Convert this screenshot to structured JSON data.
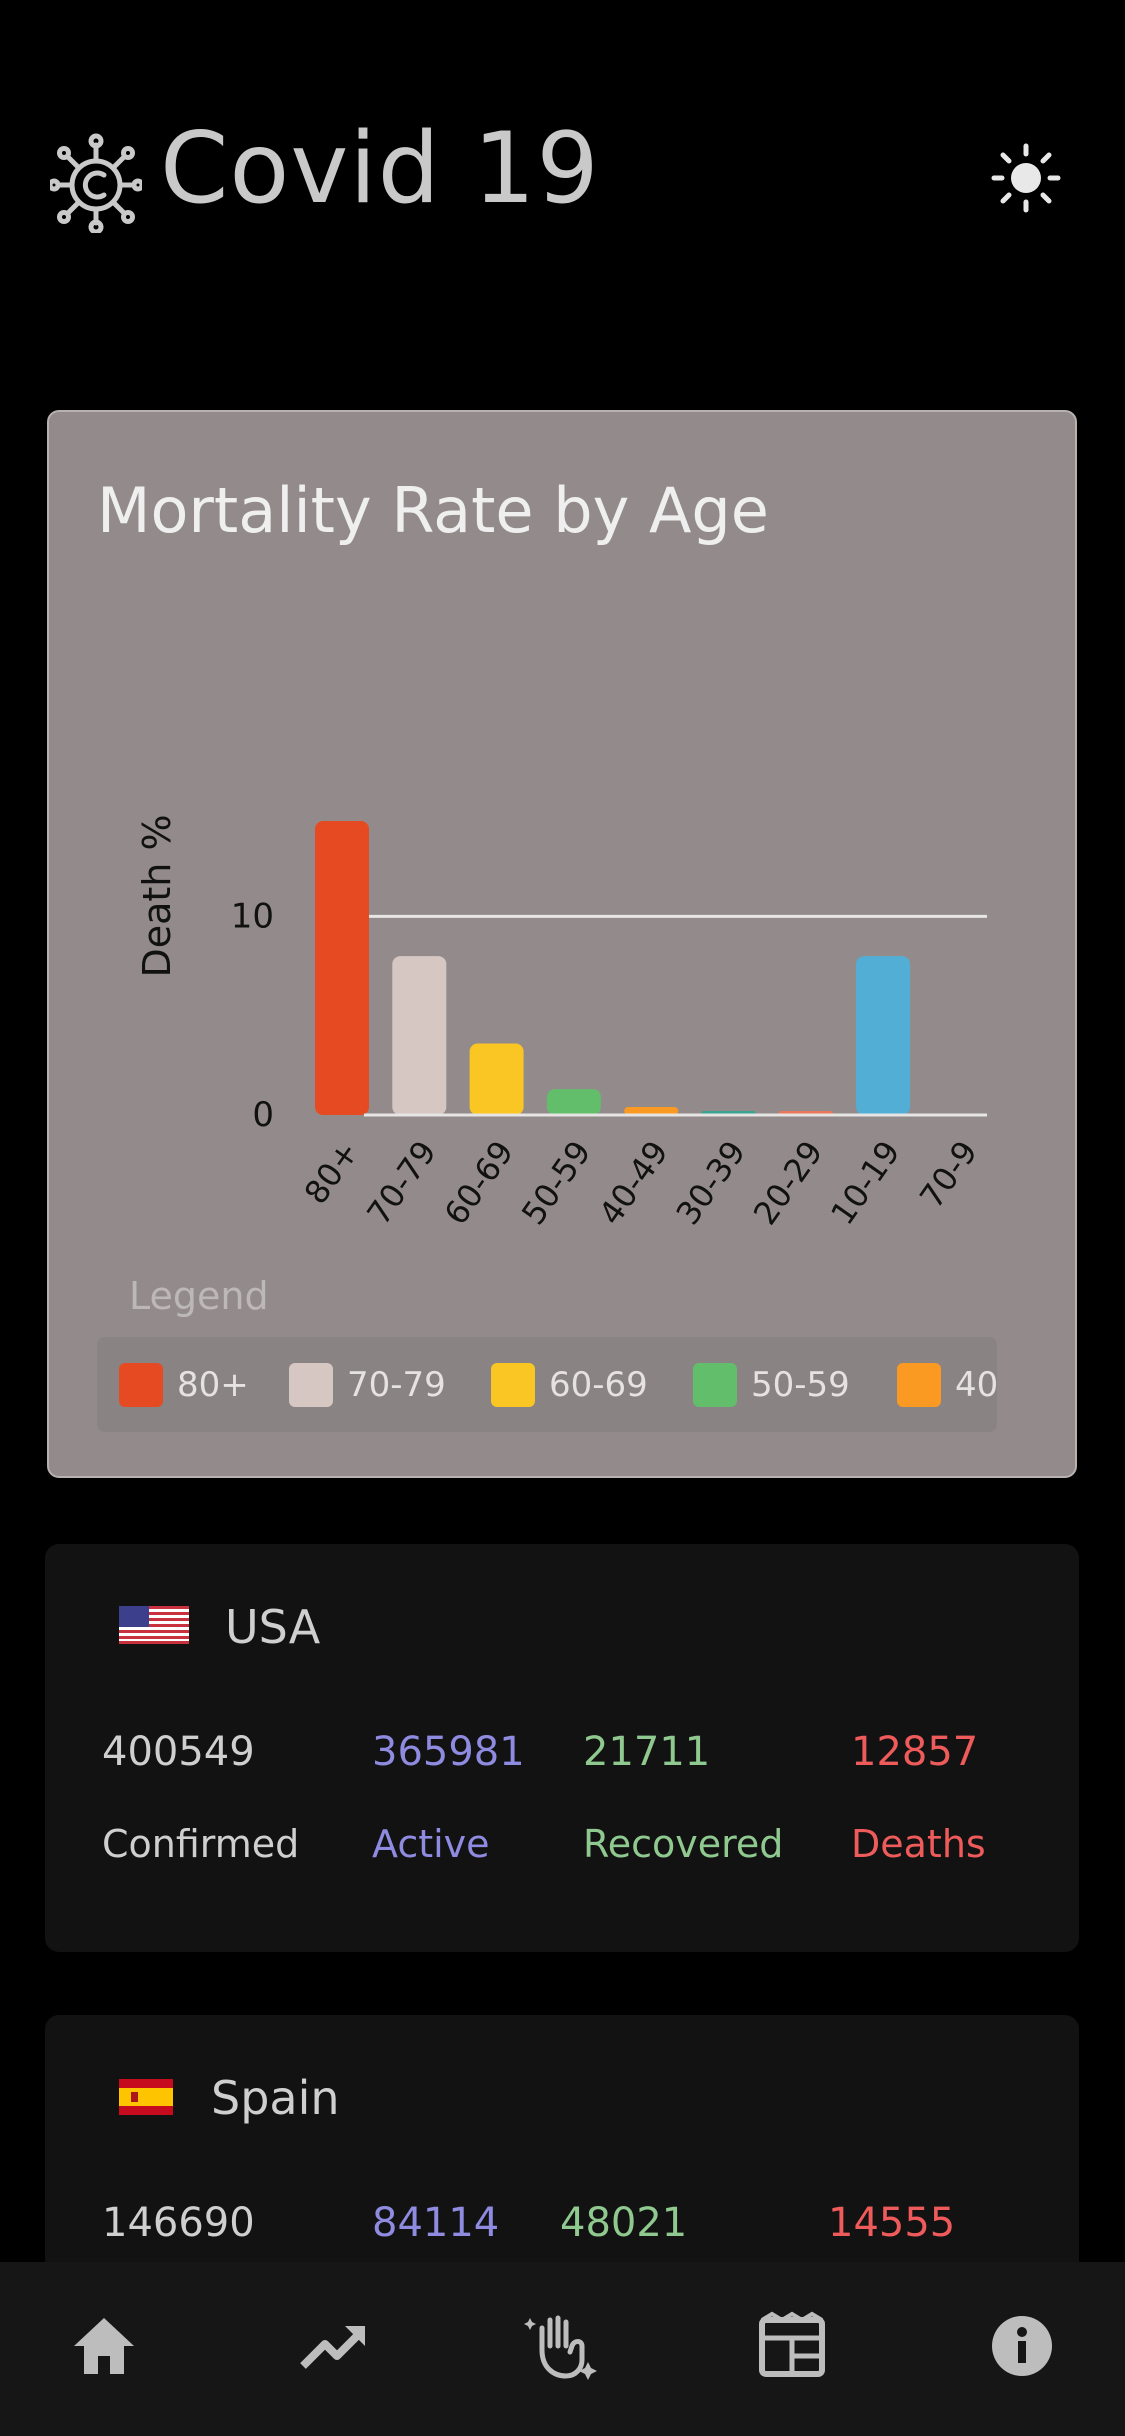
{
  "app": {
    "title": "Covid 19",
    "logo_icon": "virus-icon",
    "theme_icon": "sun-icon"
  },
  "chart_card": {
    "title": "Mortality Rate by Age",
    "legend_title": "Legend",
    "legend": [
      {
        "label": "80+",
        "color": "#e64a23"
      },
      {
        "label": "70-79",
        "color": "#d6c7c2"
      },
      {
        "label": "60-69",
        "color": "#fac623"
      },
      {
        "label": "50-59",
        "color": "#62be6b"
      },
      {
        "label": "40",
        "color": "#fb9a22"
      }
    ]
  },
  "chart_data": {
    "type": "bar",
    "categories": [
      "80+",
      "70-79",
      "60-69",
      "50-59",
      "40-49",
      "30-39",
      "20-29",
      "10-19",
      "70-9"
    ],
    "values": [
      14.8,
      8.0,
      3.6,
      1.3,
      0.4,
      0.2,
      0.2,
      8.0,
      0
    ],
    "colors": [
      "#e64a23",
      "#d6c7c2",
      "#fac623",
      "#62be6b",
      "#fb9a22",
      "#3aa38f",
      "#e8775b",
      "#52aed5",
      "#9b59b6"
    ],
    "ylabel": "Death %",
    "yticks": [
      0,
      10
    ],
    "ylim": [
      0,
      15
    ],
    "grid": true,
    "legend_position": "bottom"
  },
  "countries": [
    {
      "name": "USA",
      "flag_icon": "usa-flag-icon",
      "confirmed": "400549",
      "active": "365981",
      "recovered": "21711",
      "deaths": "12857",
      "labels": {
        "confirmed": "Confirmed",
        "active": "Active",
        "recovered": "Recovered",
        "deaths": "Deaths"
      }
    },
    {
      "name": "Spain",
      "flag_icon": "spain-flag-icon",
      "confirmed": "146690",
      "active": "84114",
      "recovered": "48021",
      "deaths": "14555"
    }
  ],
  "nav": [
    {
      "icon": "home-icon"
    },
    {
      "icon": "trending-up-icon"
    },
    {
      "icon": "clean-hands-icon"
    },
    {
      "icon": "newspaper-icon"
    },
    {
      "icon": "info-icon"
    }
  ]
}
